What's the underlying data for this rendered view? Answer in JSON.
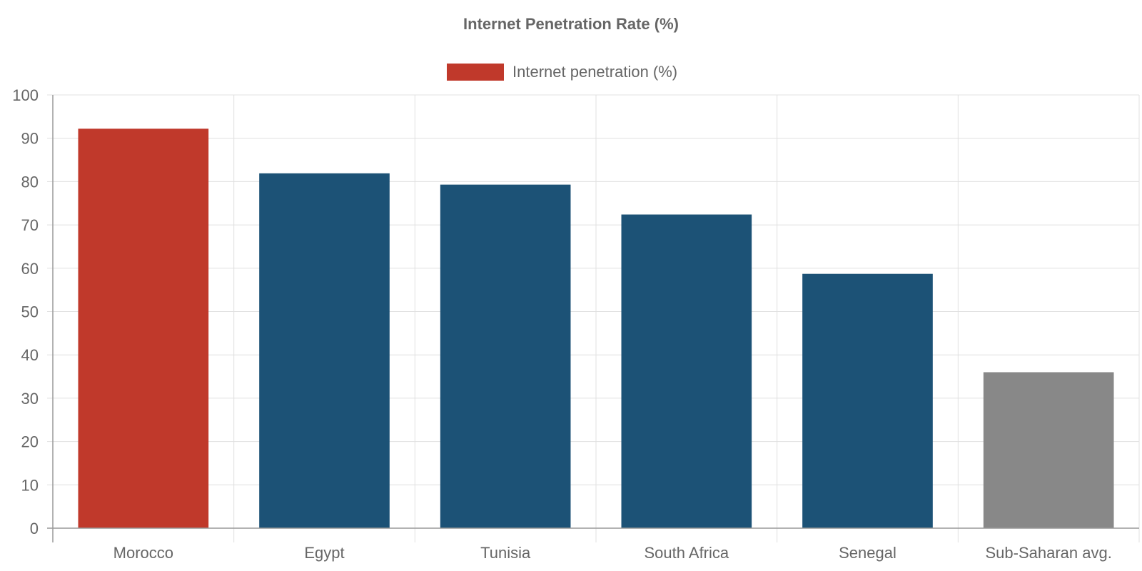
{
  "chart_data": {
    "type": "bar",
    "title": "Internet Penetration Rate (%)",
    "legend": {
      "position": "top",
      "entries": [
        {
          "label": "Internet penetration (%)",
          "color": "#c0392b"
        }
      ]
    },
    "categories": [
      "Morocco",
      "Egypt",
      "Tunisia",
      "South Africa",
      "Senegal",
      "Sub-Saharan avg."
    ],
    "series": [
      {
        "name": "Internet penetration (%)",
        "values": [
          92.2,
          81.9,
          79.3,
          72.4,
          58.7,
          36.0
        ],
        "colors": [
          "#c0392b",
          "#1c5276",
          "#1c5276",
          "#1c5276",
          "#1c5276",
          "#888888"
        ]
      }
    ],
    "ylim": [
      0,
      100
    ],
    "yticks": [
      0,
      10,
      20,
      30,
      40,
      50,
      60,
      70,
      80,
      90,
      100
    ],
    "grid": true
  },
  "colors": {
    "text": "#666666",
    "grid": "#e0e0e0",
    "axis": "#999999"
  }
}
